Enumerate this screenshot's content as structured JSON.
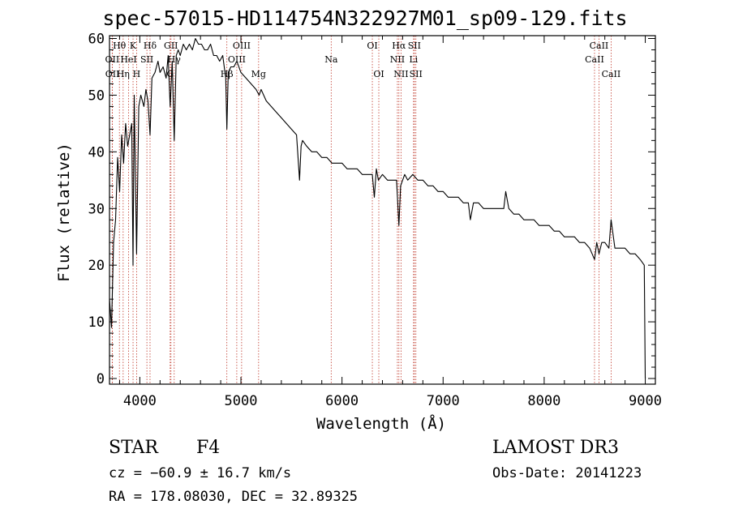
{
  "title": "spec-57015-HD114754N322927M01_sp09-129.fits",
  "info": {
    "object_type": "STAR",
    "subclass": "F4",
    "cz": "cz = −60.9 ± 16.7 km/s",
    "coords": "RA = 178.08030, DEC =  32.89325",
    "survey": "LAMOST DR3",
    "obs_date": "Obs-Date: 20141223"
  },
  "chart_data": {
    "type": "line",
    "title": "spec-57015-HD114754N322927M01_sp09-129.fits",
    "xlabel": "Wavelength (Å)",
    "ylabel": "Flux (relative)",
    "xlim": [
      3700,
      9100
    ],
    "ylim": [
      -1,
      60.5
    ],
    "xticks": [
      4000,
      5000,
      6000,
      7000,
      8000,
      9000
    ],
    "yticks": [
      0,
      10,
      20,
      30,
      40,
      50,
      60
    ],
    "grid": false,
    "series": [
      {
        "name": "flux",
        "x": [
          3700,
          3720,
          3740,
          3760,
          3780,
          3800,
          3820,
          3840,
          3860,
          3880,
          3900,
          3920,
          3933,
          3945,
          3968,
          3990,
          4010,
          4040,
          4060,
          4080,
          4101,
          4120,
          4150,
          4180,
          4200,
          4230,
          4260,
          4280,
          4300,
          4320,
          4340,
          4360,
          4380,
          4400,
          4430,
          4460,
          4490,
          4520,
          4550,
          4580,
          4610,
          4640,
          4670,
          4700,
          4730,
          4760,
          4790,
          4820,
          4850,
          4861,
          4875,
          4900,
          4930,
          4960,
          5000,
          5050,
          5100,
          5150,
          5180,
          5200,
          5250,
          5300,
          5350,
          5400,
          5450,
          5500,
          5550,
          5580,
          5595,
          5610,
          5650,
          5700,
          5750,
          5800,
          5850,
          5900,
          5950,
          6000,
          6050,
          6100,
          6150,
          6200,
          6250,
          6300,
          6320,
          6340,
          6360,
          6400,
          6450,
          6500,
          6540,
          6563,
          6580,
          6620,
          6650,
          6700,
          6750,
          6800,
          6850,
          6900,
          6950,
          7000,
          7050,
          7100,
          7150,
          7200,
          7250,
          7270,
          7300,
          7350,
          7400,
          7450,
          7500,
          7550,
          7600,
          7620,
          7650,
          7700,
          7750,
          7800,
          7850,
          7900,
          7950,
          8000,
          8050,
          8100,
          8150,
          8200,
          8250,
          8300,
          8350,
          8400,
          8450,
          8498,
          8520,
          8542,
          8570,
          8600,
          8640,
          8662,
          8700,
          8750,
          8800,
          8850,
          8900,
          8950,
          8990,
          9000
        ],
        "values": [
          14,
          9,
          24,
          28,
          39,
          33,
          43,
          38,
          45,
          41,
          43,
          45,
          20,
          50,
          22,
          48,
          50,
          48,
          51,
          49,
          43,
          53,
          54,
          56,
          54,
          55,
          53,
          57,
          48,
          56,
          42,
          57,
          58,
          57,
          59,
          58,
          59,
          58,
          60,
          59,
          59,
          58,
          58,
          59,
          57,
          57,
          56,
          57,
          53,
          44,
          54,
          55,
          55,
          56,
          54,
          53,
          52,
          51,
          50,
          51,
          49,
          48,
          47,
          46,
          45,
          44,
          43,
          35,
          41,
          42,
          41,
          40,
          40,
          39,
          39,
          38,
          38,
          38,
          37,
          37,
          37,
          36,
          36,
          36,
          32,
          37,
          35,
          36,
          35,
          35,
          35,
          27,
          34,
          36,
          35,
          36,
          35,
          35,
          34,
          34,
          33,
          33,
          32,
          32,
          32,
          31,
          31,
          28,
          31,
          31,
          30,
          30,
          30,
          30,
          30,
          33,
          30,
          29,
          29,
          28,
          28,
          28,
          27,
          27,
          27,
          26,
          26,
          25,
          25,
          25,
          24,
          24,
          23,
          21,
          24,
          22,
          24,
          24,
          23,
          28,
          23,
          23,
          23,
          22,
          22,
          21,
          20,
          0
        ]
      }
    ],
    "lines": [
      {
        "label": "Hθ",
        "x": 3798,
        "row": 0
      },
      {
        "label": "OII",
        "x": 3727,
        "row": 1
      },
      {
        "label": "OII",
        "x": 3729,
        "row": 2
      },
      {
        "label": "Hη",
        "x": 3835,
        "row": 2
      },
      {
        "label": "HeI",
        "x": 3889,
        "row": 1
      },
      {
        "label": "K",
        "x": 3933,
        "row": 0
      },
      {
        "label": "SII",
        "x": 4070,
        "row": 1
      },
      {
        "label": "H",
        "x": 3968,
        "row": 2
      },
      {
        "label": "Hδ",
        "x": 4101,
        "row": 0
      },
      {
        "label": "GII",
        "x": 4308,
        "row": 0
      },
      {
        "label": "Hγ",
        "x": 4340,
        "row": 1
      },
      {
        "label": "G",
        "x": 4300,
        "row": 2
      },
      {
        "label": "OIII",
        "x": 5007,
        "row": 0
      },
      {
        "label": "OIII",
        "x": 4959,
        "row": 1
      },
      {
        "label": "Hβ",
        "x": 4861,
        "row": 2
      },
      {
        "label": "Mg",
        "x": 5175,
        "row": 2
      },
      {
        "label": "Na",
        "x": 5893,
        "row": 1
      },
      {
        "label": "OI",
        "x": 6300,
        "row": 0
      },
      {
        "label": "OI",
        "x": 6364,
        "row": 2
      },
      {
        "label": "Hα",
        "x": 6563,
        "row": 0
      },
      {
        "label": "SII",
        "x": 6716,
        "row": 0
      },
      {
        "label": "NII",
        "x": 6548,
        "row": 1
      },
      {
        "label": "Li",
        "x": 6708,
        "row": 1
      },
      {
        "label": "NII",
        "x": 6584,
        "row": 2
      },
      {
        "label": "SII",
        "x": 6731,
        "row": 2
      },
      {
        "label": "CaII",
        "x": 8542,
        "row": 0
      },
      {
        "label": "CaII",
        "x": 8498,
        "row": 1
      },
      {
        "label": "CaII",
        "x": 8662,
        "row": 2
      }
    ]
  }
}
